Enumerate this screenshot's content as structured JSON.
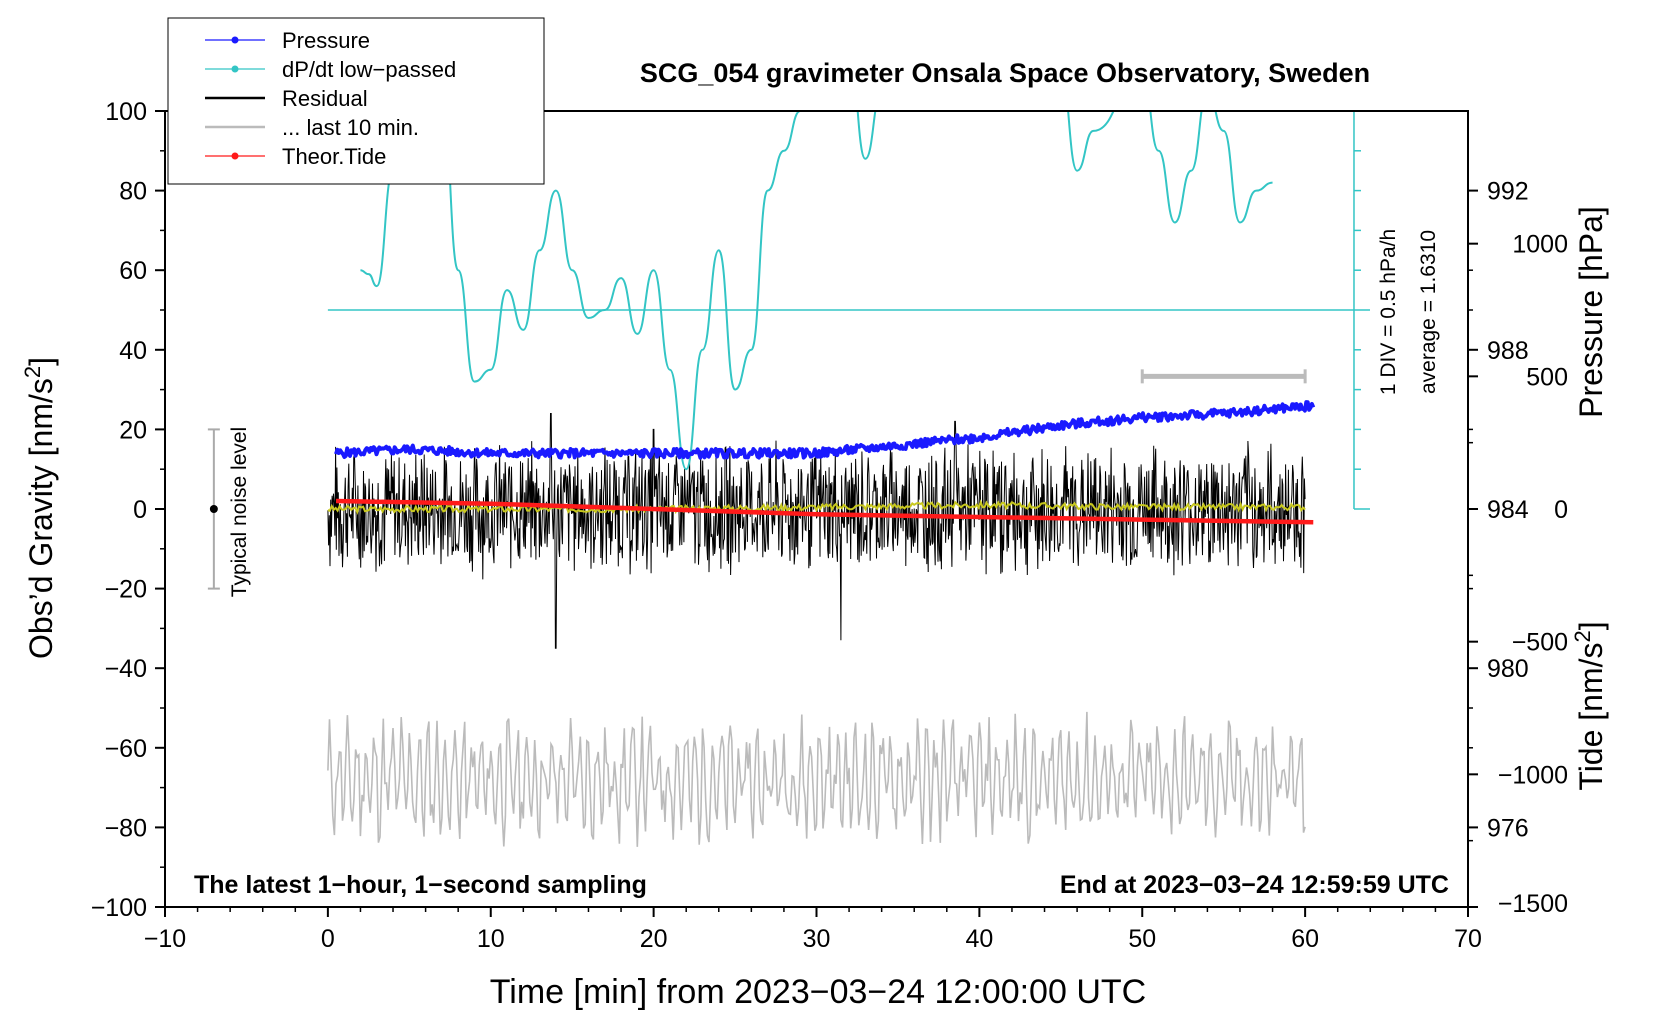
{
  "chart_data": {
    "type": "line",
    "title": "SCG_054 gravimeter Onsala Space Observatory, Sweden",
    "xlabel": "Time [min] from 2023−03−24 12:00:00 UTC",
    "ylabel_left_main": "Obs’d Gravity [nm/s",
    "ylabel_left_sup": "2",
    "ylabel_left_end": "]",
    "ylabel_right_pressure": "Pressure [hPa]",
    "ylabel_right_tide_main": "Tide [nm/s",
    "ylabel_right_tide_sup": "2",
    "ylabel_right_tide_end": "]",
    "xlim": [
      -10,
      70
    ],
    "ylim": [
      -100,
      100
    ],
    "pressure_lim": [
      974,
      994
    ],
    "tide_lim": [
      -1500,
      1500
    ],
    "x_ticks": [
      -10,
      0,
      10,
      20,
      30,
      40,
      50,
      60,
      70
    ],
    "x_tick_labels": [
      "−10",
      "0",
      "10",
      "20",
      "30",
      "40",
      "50",
      "60",
      "70"
    ],
    "y_ticks": [
      100,
      80,
      60,
      40,
      20,
      0,
      -20,
      -40,
      -60,
      -80,
      -100
    ],
    "y_tick_labels": [
      "100",
      "80",
      "60",
      "40",
      "20",
      "0",
      "−20",
      "−40",
      "−60",
      "−80",
      "−100"
    ],
    "pressure_ticks": [
      992,
      988,
      984,
      980,
      976
    ],
    "pressure_tick_labels": [
      "992",
      "988",
      "984",
      "980",
      "976"
    ],
    "tide_ticks": [
      1000,
      500,
      0,
      -500,
      -1000,
      -1500
    ],
    "tide_tick_labels": [
      "1000",
      "500",
      "0",
      "−500",
      "−1000",
      "−1500"
    ],
    "legend": {
      "placement": "top-left",
      "entries": [
        {
          "label": "Pressure",
          "color": "#1a1aff",
          "marker": "dot"
        },
        {
          "label": "dP/dt low−passed",
          "color": "#33c5c5",
          "marker": "dot"
        },
        {
          "label": "Residual",
          "color": "#000000",
          "marker": "line"
        },
        {
          "label": "... last 10 min.",
          "color": "#bbbbbb",
          "marker": "line"
        },
        {
          "label": "Theor.Tide",
          "color": "#ff1a1a",
          "marker": "dot"
        }
      ]
    },
    "annotations": {
      "bottom_left": "The latest 1−hour, 1−second sampling",
      "bottom_right": "End at 2023−03−24 12:59:59 UTC",
      "div_scale": "1 DIV = 0.5 hPa/h",
      "average": "average = 1.6310",
      "noise": "Typical noise level",
      "noise_range": [
        -20,
        20
      ]
    },
    "series": [
      {
        "name": "Pressure",
        "color": "#1a1aff",
        "axis": "pressure",
        "x": [
          0.5,
          5,
          10,
          15,
          20,
          25,
          30,
          35,
          40,
          45,
          50,
          55,
          60.5
        ],
        "values": [
          985.4,
          985.5,
          985.4,
          985.4,
          985.4,
          985.4,
          985.4,
          985.6,
          985.8,
          986.1,
          986.3,
          986.4,
          986.6
        ]
      },
      {
        "name": "dP/dt low−passed",
        "color": "#33c5c5",
        "axis": "gravity",
        "x": [
          2,
          2.5,
          3,
          4,
          5,
          6,
          7,
          8,
          9,
          10,
          11,
          12,
          13,
          14,
          15,
          16,
          17,
          18,
          19,
          20,
          21,
          22,
          23,
          24,
          25,
          26,
          27,
          28,
          29,
          30,
          31,
          32,
          33,
          34,
          35,
          45,
          46,
          47,
          50,
          51,
          52,
          53,
          54,
          55,
          56,
          57,
          58
        ],
        "values": [
          60,
          59,
          56,
          85,
          110,
          100,
          105,
          60,
          32,
          35,
          55,
          45,
          65,
          80,
          60,
          48,
          50,
          58,
          44,
          60,
          35,
          10,
          40,
          65,
          30,
          40,
          80,
          90,
          100,
          110,
          106,
          115,
          88,
          105,
          110,
          110,
          85,
          95,
          110,
          90,
          72,
          85,
          105,
          95,
          72,
          80,
          82
        ]
      },
      {
        "name": "dP/dt baseline",
        "color": "#33c5c5",
        "axis": "gravity",
        "x": [
          0,
          63
        ],
        "values": [
          50,
          50
        ]
      },
      {
        "name": "Residual",
        "color": "#000000",
        "axis": "gravity",
        "x": [
          0,
          60
        ],
        "amplitude": 18,
        "spikes": [
          {
            "x": 14,
            "value": -35
          },
          {
            "x": 31.5,
            "value": -33
          },
          {
            "x": 13.7,
            "value": 24
          },
          {
            "x": 20,
            "value": 20
          },
          {
            "x": 38.5,
            "value": 22
          }
        ]
      },
      {
        "name": "Residual smoothed",
        "color": "#c8c81e",
        "axis": "gravity",
        "x": [
          0,
          10,
          20,
          30,
          40,
          50,
          60
        ],
        "values": [
          0,
          0,
          0,
          0.5,
          1,
          0.5,
          0.5
        ]
      },
      {
        "name": "... last 10 min.",
        "color": "#bbbbbb",
        "axis": "gravity",
        "x": [
          0,
          60
        ],
        "center": -68,
        "amplitude": 14
      },
      {
        "name": "Theor.Tide",
        "color": "#ff1a1a",
        "axis": "tide",
        "x": [
          0.5,
          10,
          20,
          30,
          40,
          50,
          60.5
        ],
        "values": [
          30,
          20,
          0,
          -20,
          -30,
          -40,
          -50
        ]
      }
    ],
    "last_10_min_bar": {
      "x": [
        50,
        60
      ],
      "value": 500,
      "axis": "tide"
    }
  }
}
